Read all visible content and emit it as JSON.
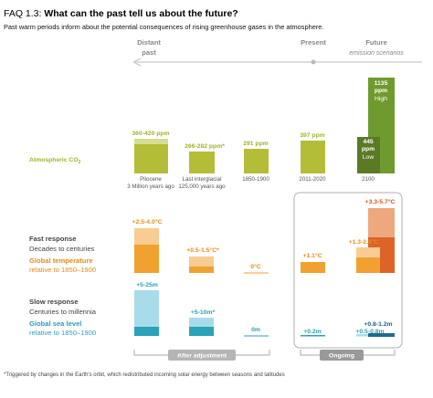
{
  "header": {
    "label": "FAQ 1.3:",
    "title": "What can the past tell us about the future?",
    "subtitle": "Past warm periods inform about the potential consequences of rising greenhouse gases in the atmosphere."
  },
  "timeline": {
    "past": [
      "Distant",
      "past"
    ],
    "present": "Present",
    "future": "Future",
    "future_note": "emission scenarios"
  },
  "periods": [
    {
      "name": "Pliocene",
      "age": "3 Million years ago"
    },
    {
      "name": "Last interglacial",
      "age": "125,000 years ago"
    },
    {
      "name": "1850-1900"
    },
    {
      "name": "2011-2020"
    },
    {
      "name": "2100"
    }
  ],
  "co2": {
    "label": "Atmospheric CO",
    "label_sub": "2",
    "values": [
      "360-420 ppm",
      "266-282 ppm*",
      "291 ppm",
      "397 ppm"
    ],
    "low": {
      "value": "445",
      "unit": "ppm",
      "name": "Low"
    },
    "high": {
      "value": "1135",
      "unit": "ppm",
      "name": "High"
    }
  },
  "temperature": {
    "response": "Fast response",
    "timescale": "Decades to centuries",
    "label": "Global temperature",
    "baseline": "relative to 1850–1900",
    "values": [
      "+2.5-4.0°C",
      "+0.5-1.5°C*",
      "0°C",
      "+1.1°C",
      "+1.3-2.4°C",
      "+3.3-5.7°C"
    ]
  },
  "sea_level": {
    "response": "Slow response",
    "timescale": "Centuries to millennia",
    "label": "Global sea level",
    "baseline": "relative to 1850–1900",
    "values": [
      "+5-25m",
      "+5-10m*",
      "0m",
      "+0.2m",
      "+0.5-0.8m",
      "+0.8-1.2m"
    ]
  },
  "groups": {
    "past": "After adjustment",
    "ongoing": "Ongoing"
  },
  "footnote": "*Triggered by changes in the Earth's orbit, which redistributed incoming solar energy between seasons and latitudes"
}
